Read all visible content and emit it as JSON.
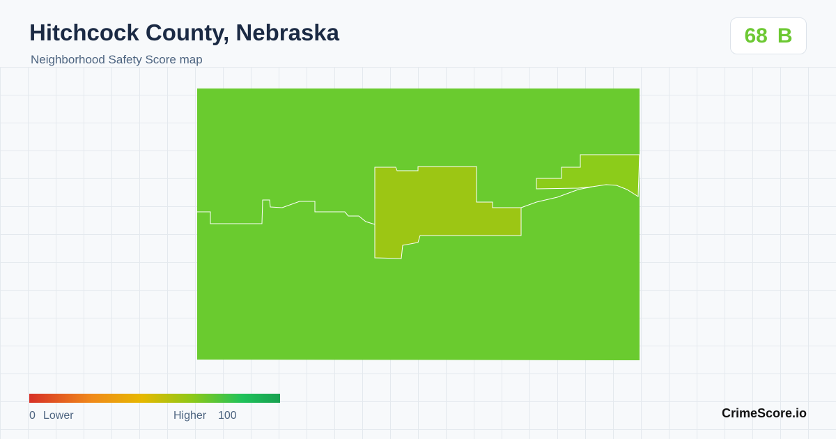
{
  "header": {
    "title": "Hitchcock County, Nebraska",
    "subtitle": "Neighborhood Safety Score map"
  },
  "score": {
    "value": 68,
    "grade": "B"
  },
  "legend": {
    "min": 0,
    "min_label": "Lower",
    "max_label": "Higher",
    "max": 100
  },
  "footer": {
    "brand": "CrimeScore.io"
  }
}
